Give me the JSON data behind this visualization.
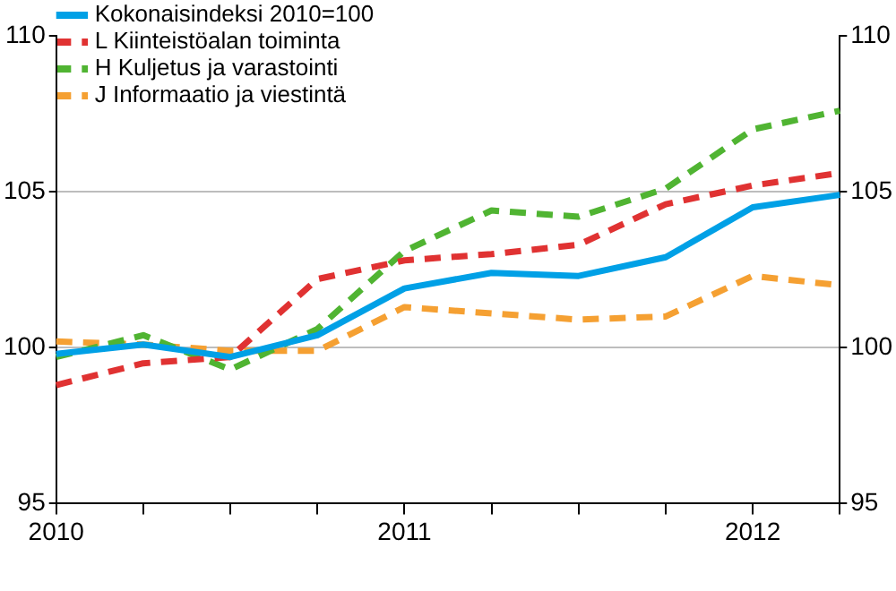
{
  "chart_data": {
    "type": "line",
    "categories": [
      "2010",
      null,
      null,
      null,
      "2011",
      null,
      null,
      null,
      "2012",
      null
    ],
    "series": [
      {
        "name": "Kokonaisindeksi 2010=100",
        "color": "#00a0e6",
        "line_style": "solid",
        "values": [
          99.8,
          100.1,
          99.7,
          100.4,
          101.9,
          102.4,
          102.3,
          102.9,
          104.5,
          104.9
        ]
      },
      {
        "name": "L Kiinteistöalan toiminta",
        "color": "#e03232",
        "line_style": "dashed",
        "values": [
          98.8,
          99.5,
          99.7,
          102.2,
          102.8,
          103.0,
          103.3,
          104.6,
          105.2,
          105.6
        ]
      },
      {
        "name": "H Kuljetus ja varastointi",
        "color": "#50b432",
        "line_style": "dashed",
        "values": [
          99.7,
          100.4,
          99.3,
          100.6,
          103.1,
          104.4,
          104.2,
          105.1,
          107.0,
          107.6
        ]
      },
      {
        "name": "J Informaatio ja viestintä",
        "color": "#f5a032",
        "line_style": "dashed",
        "values": [
          100.2,
          100.1,
          99.9,
          99.9,
          101.3,
          101.1,
          100.9,
          101.0,
          102.3,
          102.0
        ]
      }
    ],
    "ylim": [
      95,
      110
    ],
    "yticks": [
      95,
      100,
      105,
      110
    ],
    "y2lim": [
      95,
      110
    ],
    "y2ticks": [
      95,
      100,
      105,
      110
    ],
    "grid": "y",
    "legend": "top left",
    "marker": "none"
  }
}
